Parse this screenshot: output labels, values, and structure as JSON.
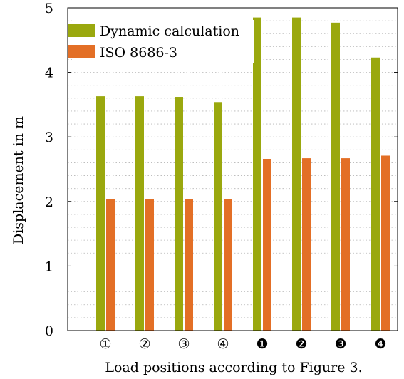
{
  "chart_data": {
    "type": "bar",
    "xlabel": "Load positions according to Figure 3.",
    "ylabel": "Displacement in m",
    "ylim": [
      0,
      5
    ],
    "yticks": [
      0,
      1,
      2,
      3,
      4,
      5
    ],
    "minor_grid_step": 0.2,
    "grid": "dotted horizontal",
    "legend_position": "top-left",
    "categories": [
      "①",
      "②",
      "③",
      "④",
      "❶",
      "❷",
      "❸",
      "❹"
    ],
    "series": [
      {
        "name": "Dynamic calculation",
        "color": "#9aa80e",
        "values": [
          3.63,
          3.63,
          3.62,
          3.54,
          4.85,
          4.85,
          4.77,
          4.23
        ]
      },
      {
        "name": "ISO 8686-3",
        "color": "#e36f26",
        "values": [
          2.04,
          2.04,
          2.04,
          2.04,
          2.66,
          2.67,
          2.67,
          2.71
        ]
      }
    ]
  }
}
